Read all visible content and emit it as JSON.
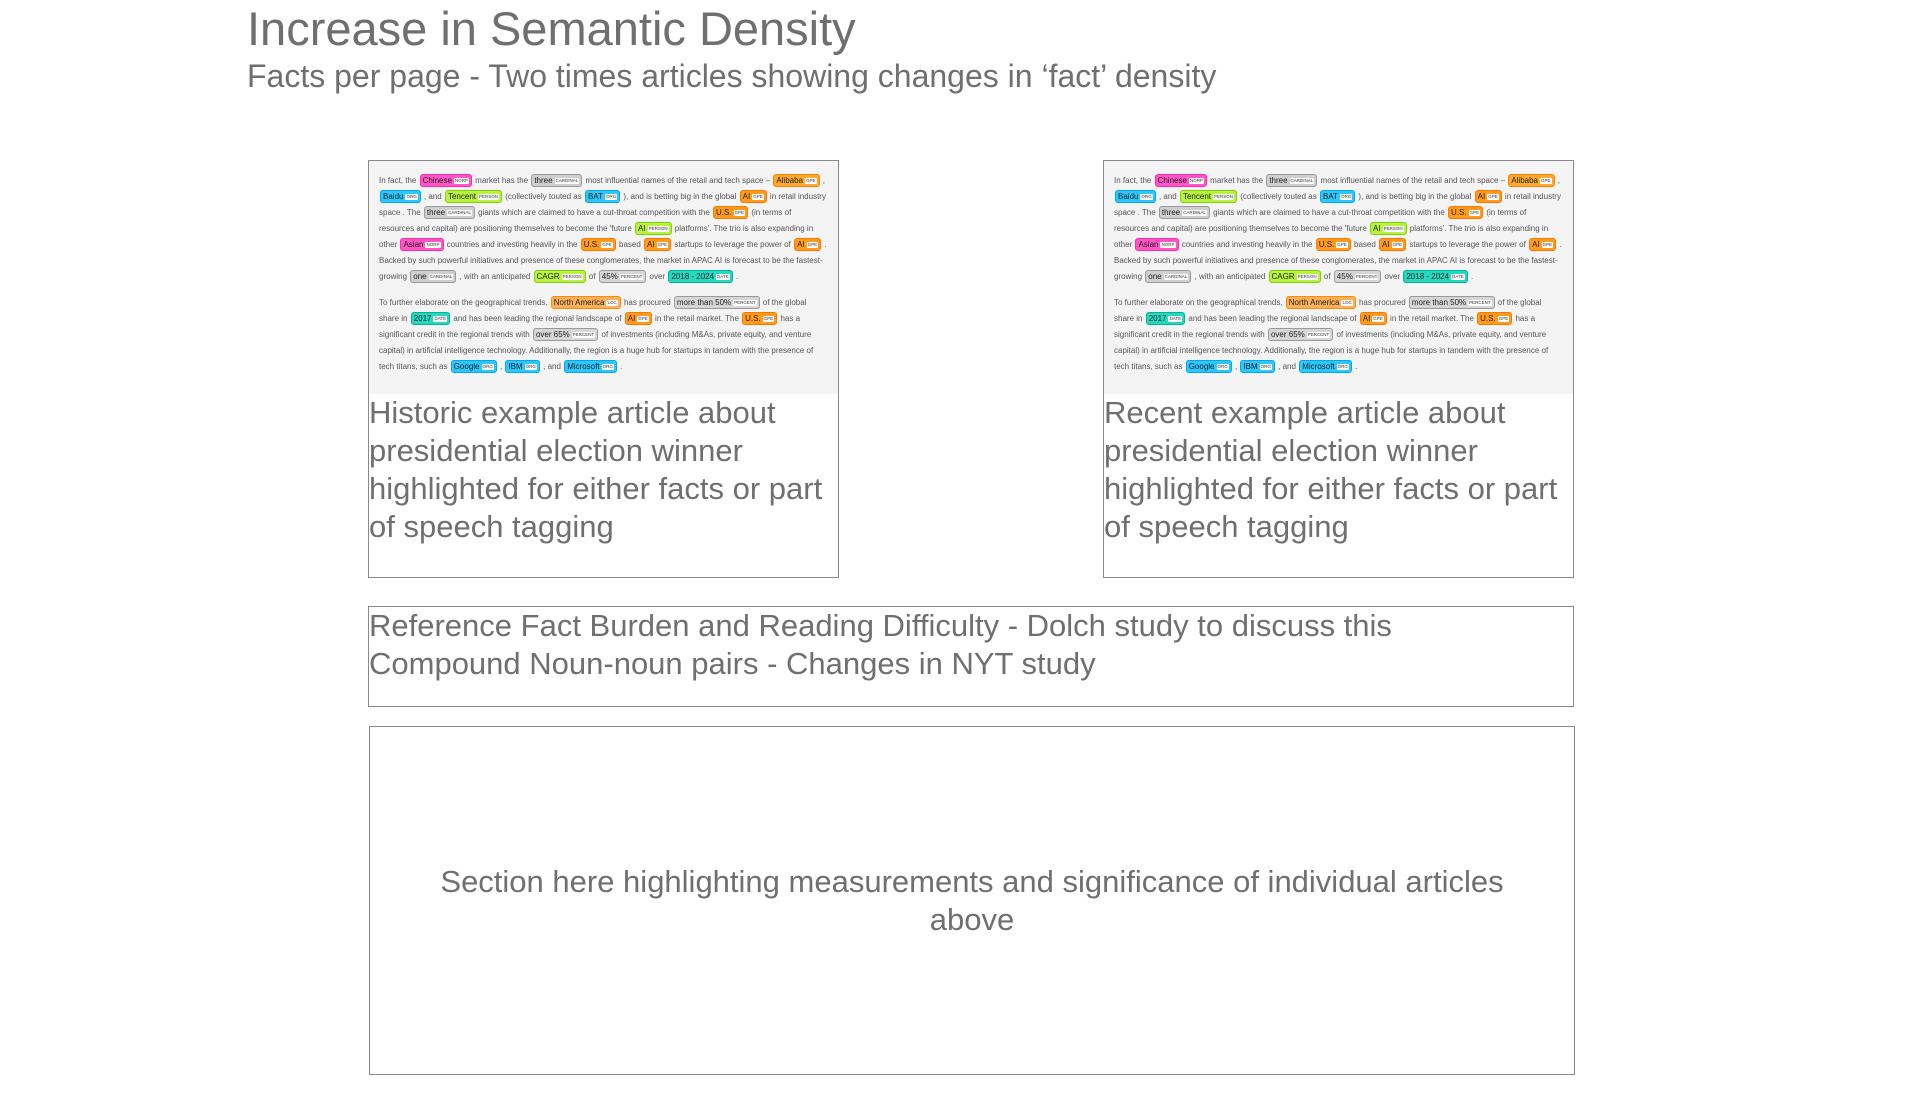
{
  "header": {
    "title": "Increase in Semantic Density",
    "subtitle": "Facts per page - Two times articles showing changes in ‘fact’ density"
  },
  "article_snippet": {
    "p1": [
      {
        "t": "In fact, the "
      },
      {
        "e": "Chinese",
        "l": "NORP",
        "c": "t-norp"
      },
      {
        "t": " market has the "
      },
      {
        "e": "three",
        "l": "CARDINAL",
        "c": "t-card"
      },
      {
        "t": " most influential names of the retail and tech space – "
      },
      {
        "e": "Alibaba",
        "l": "GPE",
        "c": "t-org"
      },
      {
        "t": " , "
      },
      {
        "e": "Baidu",
        "l": "ORG",
        "c": "t-org2"
      },
      {
        "t": " , and "
      },
      {
        "e": "Tencent",
        "l": "PERSON",
        "c": "t-person"
      },
      {
        "t": " (collectively touted as "
      },
      {
        "e": "BAT",
        "l": "ORG",
        "c": "t-org2"
      },
      {
        "t": " ), and is betting big in the global "
      },
      {
        "e": "AI",
        "l": "GPE",
        "c": "t-gpe"
      },
      {
        "t": " in retail industry space . The "
      },
      {
        "e": "three",
        "l": "CARDINAL",
        "c": "t-card"
      },
      {
        "t": " giants which are claimed to have a cut-throat competition with the "
      },
      {
        "e": "U.S.",
        "l": "GPE",
        "c": "t-gpe"
      },
      {
        "t": " (in terms of resources and capital) are positioning themselves to become the 'future "
      },
      {
        "e": "AI",
        "l": "PERSON",
        "c": "t-person"
      },
      {
        "t": " platforms'. The trio is also expanding in other "
      },
      {
        "e": "Asian",
        "l": "NORP",
        "c": "t-norp"
      },
      {
        "t": " countries and investing heavily in the "
      },
      {
        "e": "U.S.",
        "l": "GPE",
        "c": "t-gpe"
      },
      {
        "t": " based "
      },
      {
        "e": "AI",
        "l": "GPE",
        "c": "t-gpe"
      },
      {
        "t": " startups to leverage the power of "
      },
      {
        "e": "AI",
        "l": "GPE",
        "c": "t-gpe"
      },
      {
        "t": " . Backed by such powerful initiatives and presence of these conglomerates, the market in APAC AI is forecast to be the fastest-growing "
      },
      {
        "e": "one",
        "l": "CARDINAL",
        "c": "t-card"
      },
      {
        "t": " , with an anticipated "
      },
      {
        "e": "CAGR",
        "l": "PERSON",
        "c": "t-person"
      },
      {
        "t": " of "
      },
      {
        "e": "45%",
        "l": "PERCENT",
        "c": "t-pct"
      },
      {
        "t": " over "
      },
      {
        "e": "2018 - 2024",
        "l": "DATE",
        "c": "t-date"
      },
      {
        "t": " ."
      }
    ],
    "p2": [
      {
        "t": "To further elaborate on the geographical trends, "
      },
      {
        "e": "North America",
        "l": "LOC",
        "c": "t-loc"
      },
      {
        "t": " has procured "
      },
      {
        "e": "more than 50%",
        "l": "PERCENT",
        "c": "t-pct"
      },
      {
        "t": " of the global share in "
      },
      {
        "e": "2017",
        "l": "DATE",
        "c": "t-date"
      },
      {
        "t": " and has been leading the regional landscape of "
      },
      {
        "e": "AI",
        "l": "GPE",
        "c": "t-gpe"
      },
      {
        "t": " in the retail market. The "
      },
      {
        "e": "U.S.",
        "l": "GPE",
        "c": "t-gpe"
      },
      {
        "t": " has a significant credit in the regional trends with "
      },
      {
        "e": "over 65%",
        "l": "PERCENT",
        "c": "t-pct"
      },
      {
        "t": " of investments (including M&As, private equity, and venture capital) in artificial intelligence technology. Additionally, the region is a huge hub for startups in tandem with the presence of tech titans, such as "
      },
      {
        "e": "Google",
        "l": "ORG",
        "c": "t-org2"
      },
      {
        "t": " , "
      },
      {
        "e": "IBM",
        "l": "ORG",
        "c": "t-org2"
      },
      {
        "t": " , and "
      },
      {
        "e": "Microsoft",
        "l": "ORG",
        "c": "t-org2"
      },
      {
        "t": " ."
      }
    ]
  },
  "cards": {
    "historic_caption": "Historic example article about presidential election winner highlighted for either facts or part of speech tagging",
    "recent_caption": "Recent example article about presidential election winner highlighted for either facts or part of speech tagging"
  },
  "reference": {
    "line1": "Reference Fact Burden and Reading Difficulty - Dolch study to discuss this",
    "line2": "Compound Noun-noun pairs - Changes in NYT study"
  },
  "section": {
    "text": "Section here highlighting measurements and significance of individual articles above"
  },
  "colors": {
    "text_gray": "#6f6f6f",
    "border": "#8a8a8a",
    "norp": "#ff55c6",
    "org": "#ffaa2a",
    "org_blue": "#2ac8ff",
    "person": "#b8f23c",
    "date": "#25d9c0"
  }
}
